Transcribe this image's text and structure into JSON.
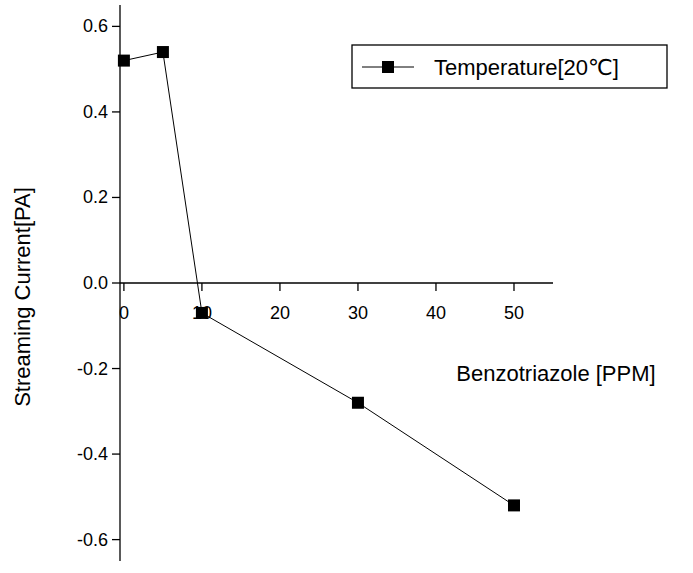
{
  "chart_data": {
    "type": "line",
    "x_label": "Benzotriazole [PPM]",
    "y_label": "Streaming Current[PA]",
    "x": [
      0,
      5,
      10,
      30,
      50
    ],
    "series": [
      {
        "name": "Temperature[20℃]",
        "color": "#000000",
        "marker": "square",
        "line_style": "solid",
        "values": [
          0.52,
          0.54,
          -0.07,
          -0.28,
          -0.52
        ]
      }
    ],
    "xlim": [
      -0.5,
      55
    ],
    "xticks": [
      0,
      10,
      20,
      30,
      40,
      50
    ],
    "ylim": [
      -0.65,
      0.65
    ],
    "yticks": [
      -0.6,
      -0.4,
      -0.2,
      {
        "value": 0,
        "label": "0.0"
      },
      0.2,
      0.4,
      0.6
    ],
    "grid": false,
    "legend": "top-right"
  }
}
